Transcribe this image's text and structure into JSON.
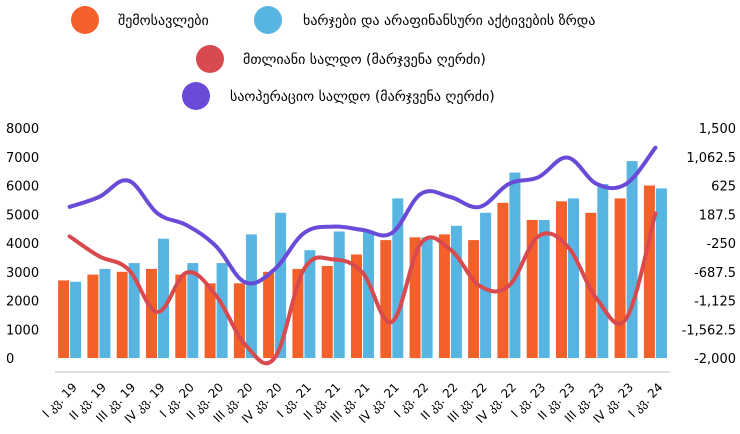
{
  "colors": {
    "revenue": "#F4602A",
    "expenditure": "#58B5E1",
    "overall_balance": "#D94A4F",
    "primary_balance": "#6A4BD8"
  },
  "chart_data": {
    "type": "bar",
    "categories": [
      "I კვ. 19",
      "II კვ. 19",
      "III კვ. 19",
      "IV კვ. 19",
      "I კვ. 20",
      "II კვ. 20",
      "III კვ. 20",
      "IV კვ. 20",
      "I კვ. 21",
      "II კვ. 21",
      "III კვ. 21",
      "IV კვ. 21",
      "I კვ. 22",
      "II კვ. 22",
      "III კვ. 22",
      "IV კვ. 22",
      "I კვ. 23",
      "II კვ. 23",
      "III კვ. 23",
      "IV კვ. 23",
      "I კვ. 24"
    ],
    "series": [
      {
        "name": "შემოსავლები",
        "type": "bar",
        "axis": "left",
        "values": [
          2700,
          2900,
          3000,
          3100,
          2900,
          2600,
          2600,
          3000,
          3100,
          3200,
          3600,
          4100,
          4200,
          4300,
          4100,
          5400,
          4800,
          5450,
          5050,
          5550,
          6000
        ]
      },
      {
        "name": "ხარჯები და არაფინანსური აქტივების ზრდა",
        "type": "bar",
        "axis": "left",
        "values": [
          2650,
          3100,
          3300,
          4150,
          3300,
          3300,
          4300,
          5050,
          3750,
          4400,
          4400,
          5550,
          4200,
          4600,
          5050,
          6450,
          4800,
          5550,
          6050,
          6850,
          5900
        ]
      },
      {
        "name": "მთლიანი სალდო (მარჯვენა ღერძი)",
        "type": "line",
        "axis": "right",
        "values": [
          -150,
          -450,
          -650,
          -1300,
          -700,
          -1050,
          -1800,
          -2000,
          -650,
          -500,
          -700,
          -1450,
          -250,
          -350,
          -900,
          -900,
          -150,
          -300,
          -1100,
          -1400,
          200
        ]
      },
      {
        "name": "საოპერაციო სალდო (მარჯვენა ღერძი)",
        "type": "line",
        "axis": "right",
        "values": [
          300,
          450,
          700,
          200,
          20,
          -300,
          -850,
          -650,
          -100,
          0,
          -50,
          -100,
          500,
          450,
          300,
          650,
          750,
          1050,
          650,
          650,
          1200
        ]
      }
    ],
    "left_axis": {
      "min": 0,
      "max": 8000,
      "ticks": [
        "0",
        "1000",
        "2000",
        "3000",
        "4000",
        "5000",
        "6000",
        "7000",
        "8000"
      ]
    },
    "right_axis": {
      "min": -2000,
      "max": 1500,
      "ticks": [
        "-2,000",
        "-1,562.5",
        "-1,125",
        "-687.5",
        "-250",
        "187.5",
        "625",
        "1,062.5",
        "1,500"
      ]
    },
    "grid": false,
    "legend_position": "top"
  }
}
